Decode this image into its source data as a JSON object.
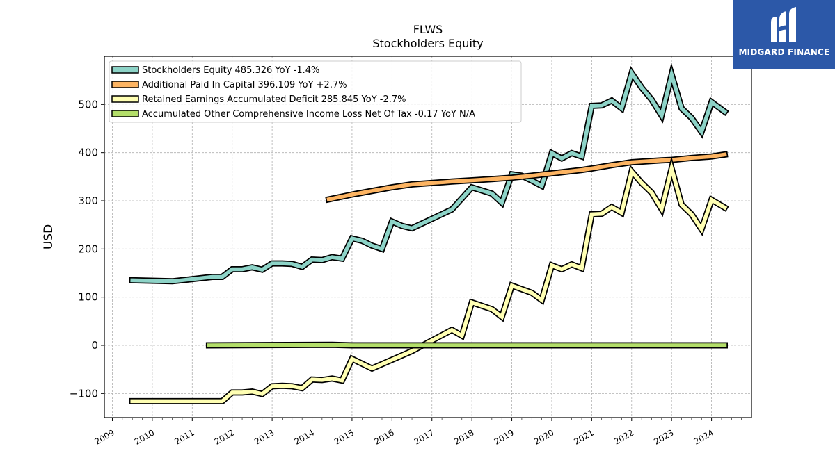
{
  "chart_data": {
    "type": "line",
    "title": "FLWS",
    "subtitle": "Stockholders  Equity",
    "ylabel": "USD",
    "xlabel": "",
    "ylim": [
      -150,
      600
    ],
    "xlim": [
      2008.8,
      2025.0
    ],
    "grid": true,
    "legend_position": "top-left",
    "y_ticks": [
      -100,
      0,
      100,
      200,
      300,
      400,
      500
    ],
    "y_tick_labels": [
      "−100",
      "0",
      "100",
      "200",
      "300",
      "400",
      "500"
    ],
    "x_ticks": [
      2009,
      2010,
      2011,
      2012,
      2013,
      2014,
      2015,
      2016,
      2017,
      2018,
      2019,
      2020,
      2021,
      2022,
      2023,
      2024
    ],
    "x_tick_labels": [
      "2009",
      "2010",
      "2011",
      "2012",
      "2013",
      "2014",
      "2015",
      "2016",
      "2017",
      "2018",
      "2019",
      "2020",
      "2021",
      "2022",
      "2023",
      "2024"
    ],
    "series": [
      {
        "name": "Stockholders Equity  485.326 YoY -1.4%",
        "color": "#8dd3c7",
        "points": [
          [
            2009.5,
            135
          ],
          [
            2010.5,
            133
          ],
          [
            2011.5,
            142
          ],
          [
            2011.75,
            142
          ],
          [
            2012.0,
            158
          ],
          [
            2012.25,
            158
          ],
          [
            2012.5,
            162
          ],
          [
            2012.75,
            157
          ],
          [
            2013.0,
            170
          ],
          [
            2013.25,
            170
          ],
          [
            2013.5,
            169
          ],
          [
            2013.75,
            163
          ],
          [
            2014.0,
            178
          ],
          [
            2014.25,
            177
          ],
          [
            2014.5,
            183
          ],
          [
            2014.75,
            180
          ],
          [
            2015.0,
            222
          ],
          [
            2015.25,
            217
          ],
          [
            2015.5,
            207
          ],
          [
            2015.75,
            200
          ],
          [
            2016.0,
            257
          ],
          [
            2016.25,
            248
          ],
          [
            2016.5,
            243
          ],
          [
            2017.5,
            282
          ],
          [
            2018.0,
            328
          ],
          [
            2018.5,
            315
          ],
          [
            2018.75,
            296
          ],
          [
            2019.0,
            355
          ],
          [
            2019.25,
            352
          ],
          [
            2019.5,
            342
          ],
          [
            2019.75,
            331
          ],
          [
            2020.0,
            399
          ],
          [
            2020.25,
            388
          ],
          [
            2020.5,
            399
          ],
          [
            2020.75,
            392
          ],
          [
            2021.0,
            497
          ],
          [
            2021.25,
            498
          ],
          [
            2021.5,
            508
          ],
          [
            2021.75,
            492
          ],
          [
            2022.0,
            565
          ],
          [
            2022.25,
            535
          ],
          [
            2022.5,
            510
          ],
          [
            2022.75,
            477
          ],
          [
            2023.0,
            562
          ],
          [
            2023.25,
            492
          ],
          [
            2023.5,
            472
          ],
          [
            2023.75,
            443
          ],
          [
            2024.0,
            505
          ],
          [
            2024.33,
            485
          ]
        ]
      },
      {
        "name": "Additional Paid In Capital  396.109 YoY +2.7%",
        "color": "#fdb462",
        "points": [
          [
            2014.42,
            303
          ],
          [
            2015.0,
            313
          ],
          [
            2016.0,
            328
          ],
          [
            2016.5,
            334
          ],
          [
            2017.5,
            340
          ],
          [
            2018.5,
            345
          ],
          [
            2019.0,
            348
          ],
          [
            2019.5,
            352
          ],
          [
            2020.0,
            357
          ],
          [
            2020.75,
            364
          ],
          [
            2021.0,
            367
          ],
          [
            2021.5,
            374
          ],
          [
            2022.0,
            380
          ],
          [
            2022.75,
            384
          ],
          [
            2023.0,
            385
          ],
          [
            2023.5,
            389
          ],
          [
            2024.0,
            392
          ],
          [
            2024.33,
            396
          ]
        ]
      },
      {
        "name": "Retained Earnings Accumulated Deficit  285.845 YoY -2.7%",
        "color": "#ffffb3",
        "points": [
          [
            2009.5,
            -116
          ],
          [
            2011.75,
            -116
          ],
          [
            2012.0,
            -98
          ],
          [
            2012.25,
            -98
          ],
          [
            2012.5,
            -96
          ],
          [
            2012.75,
            -101
          ],
          [
            2013.0,
            -85
          ],
          [
            2013.25,
            -84
          ],
          [
            2013.5,
            -85
          ],
          [
            2013.75,
            -89
          ],
          [
            2014.0,
            -71
          ],
          [
            2014.25,
            -72
          ],
          [
            2014.5,
            -69
          ],
          [
            2014.75,
            -73
          ],
          [
            2015.0,
            -28
          ],
          [
            2015.5,
            -48
          ],
          [
            2016.5,
            -12
          ],
          [
            2017.5,
            32
          ],
          [
            2017.75,
            20
          ],
          [
            2018.0,
            89
          ],
          [
            2018.5,
            75
          ],
          [
            2018.75,
            59
          ],
          [
            2019.0,
            124
          ],
          [
            2019.5,
            109
          ],
          [
            2019.75,
            94
          ],
          [
            2020.0,
            166
          ],
          [
            2020.25,
            158
          ],
          [
            2020.5,
            168
          ],
          [
            2020.75,
            160
          ],
          [
            2021.0,
            272
          ],
          [
            2021.25,
            273
          ],
          [
            2021.5,
            287
          ],
          [
            2021.75,
            275
          ],
          [
            2022.0,
            361
          ],
          [
            2022.25,
            337
          ],
          [
            2022.5,
            317
          ],
          [
            2022.75,
            283
          ],
          [
            2023.0,
            367
          ],
          [
            2023.25,
            292
          ],
          [
            2023.5,
            272
          ],
          [
            2023.75,
            241
          ],
          [
            2024.0,
            302
          ],
          [
            2024.33,
            286
          ]
        ]
      },
      {
        "name": "Accumulated Other Comprehensive Income Loss Net Of Tax  -0.17 YoY N/A",
        "color": "#b3de69",
        "points": [
          [
            2011.42,
            0
          ],
          [
            2014.5,
            1
          ],
          [
            2015.0,
            0
          ],
          [
            2024.33,
            0
          ]
        ]
      }
    ]
  },
  "logo": {
    "text": "MIDGARD FINANCE",
    "bg_color": "#2c58a8"
  }
}
